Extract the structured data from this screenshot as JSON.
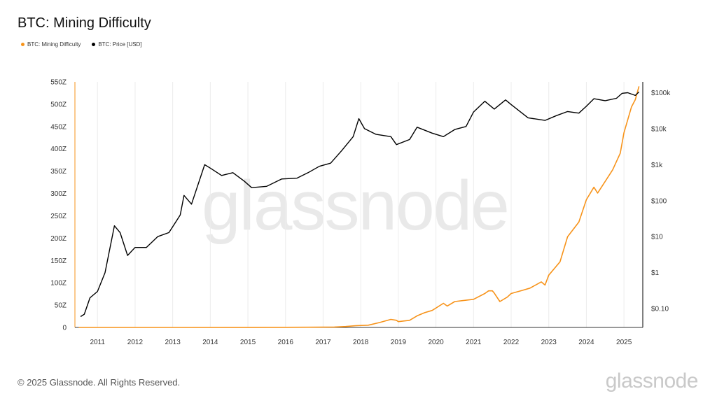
{
  "header": {
    "title": "BTC: Mining Difficulty"
  },
  "footer": {
    "copyright": "© 2025 Glassnode. All Rights Reserved.",
    "brand": "glassnode",
    "watermark": "glassnode"
  },
  "colors": {
    "difficulty": "#f7931a",
    "price": "#000000",
    "grid": "#ececec",
    "axis": "#333333"
  },
  "chart_data": {
    "type": "line",
    "title": "BTC: Mining Difficulty",
    "legend_position": "top-left",
    "grid": true,
    "x_range": [
      2010.4,
      2025.5
    ],
    "x_ticks": [
      "2011",
      "2012",
      "2013",
      "2014",
      "2015",
      "2016",
      "2017",
      "2018",
      "2019",
      "2020",
      "2021",
      "2022",
      "2023",
      "2024",
      "2025"
    ],
    "y_left": {
      "range": [
        0,
        550
      ],
      "ticks": [
        "0",
        "50Z",
        "100Z",
        "150Z",
        "200Z",
        "250Z",
        "300Z",
        "350Z",
        "400Z",
        "450Z",
        "500Z",
        "550Z"
      ]
    },
    "y_right": {
      "scale": "log",
      "range": [
        0.03,
        200000
      ],
      "ticks": [
        {
          "value": 0.1,
          "label": "$0.10"
        },
        {
          "value": 1,
          "label": "$1"
        },
        {
          "value": 10,
          "label": "$10"
        },
        {
          "value": 100,
          "label": "$100"
        },
        {
          "value": 1000,
          "label": "$1k"
        },
        {
          "value": 10000,
          "label": "$10k"
        },
        {
          "value": 100000,
          "label": "$100k"
        }
      ]
    },
    "series": [
      {
        "name": "BTC: Mining Difficulty",
        "axis": "left",
        "x": [
          2010.5,
          2013.0,
          2015.0,
          2016.0,
          2016.6,
          2017.0,
          2017.3,
          2017.6,
          2017.9,
          2018.2,
          2018.5,
          2018.8,
          2018.95,
          2019.0,
          2019.3,
          2019.5,
          2019.7,
          2019.9,
          2020.2,
          2020.3,
          2020.5,
          2020.8,
          2021.0,
          2021.3,
          2021.4,
          2021.5,
          2021.55,
          2021.7,
          2021.9,
          2022.0,
          2022.3,
          2022.5,
          2022.8,
          2022.9,
          2023.0,
          2023.3,
          2023.5,
          2023.8,
          2024.0,
          2024.2,
          2024.3,
          2024.5,
          2024.7,
          2024.9,
          2025.0,
          2025.2,
          2025.3,
          2025.4
        ],
        "y": [
          0,
          0.01,
          0.1,
          0.3,
          0.4,
          0.6,
          1,
          2,
          4,
          5,
          11,
          18,
          16,
          13,
          16,
          26,
          33,
          38,
          54,
          48,
          58,
          61,
          63,
          76,
          82,
          82,
          77,
          58,
          68,
          76,
          83,
          88,
          102,
          95,
          117,
          147,
          203,
          236,
          286,
          314,
          301,
          327,
          353,
          390,
          436,
          494,
          510,
          540
        ]
      },
      {
        "name": "BTC: Price [USD]",
        "axis": "right",
        "x": [
          2010.55,
          2010.65,
          2010.8,
          2011.0,
          2011.2,
          2011.45,
          2011.6,
          2011.8,
          2012.0,
          2012.3,
          2012.6,
          2012.9,
          2013.2,
          2013.3,
          2013.5,
          2013.85,
          2014.0,
          2014.3,
          2014.6,
          2014.9,
          2015.1,
          2015.5,
          2015.9,
          2016.3,
          2016.6,
          2016.9,
          2017.2,
          2017.5,
          2017.8,
          2017.95,
          2018.1,
          2018.4,
          2018.8,
          2018.95,
          2019.3,
          2019.5,
          2019.9,
          2020.2,
          2020.5,
          2020.8,
          2021.0,
          2021.3,
          2021.55,
          2021.85,
          2022.0,
          2022.45,
          2022.9,
          2023.2,
          2023.5,
          2023.8,
          2024.0,
          2024.2,
          2024.5,
          2024.8,
          2024.95,
          2025.1,
          2025.3,
          2025.4
        ],
        "y": [
          0.06,
          0.07,
          0.2,
          0.3,
          1,
          20,
          13,
          3,
          5,
          5,
          10,
          13,
          40,
          140,
          80,
          1000,
          800,
          500,
          600,
          350,
          230,
          250,
          400,
          420,
          600,
          900,
          1100,
          2500,
          6000,
          19000,
          10000,
          7000,
          6000,
          3600,
          5000,
          11000,
          7500,
          6000,
          9500,
          11500,
          29000,
          58000,
          35000,
          63000,
          47000,
          20000,
          17000,
          23000,
          30000,
          27000,
          42000,
          68000,
          60000,
          70000,
          96000,
          100000,
          84000,
          105000
        ]
      }
    ]
  }
}
